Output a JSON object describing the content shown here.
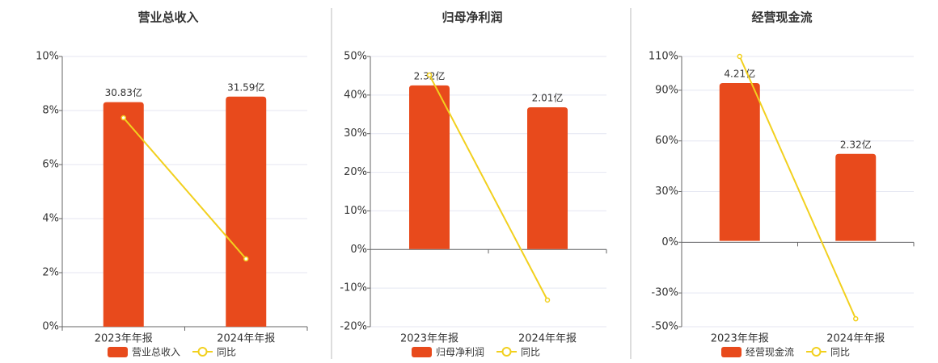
{
  "chart_data": [
    {
      "type": "bar-line",
      "title": "营业总收入",
      "categories": [
        "2023年年报",
        "2024年年报"
      ],
      "series": [
        {
          "name": "营业总收入",
          "type": "bar",
          "color": "#e84a1c",
          "axis": "y2",
          "values": [
            30.83,
            31.59
          ],
          "value_labels": [
            "30.83亿",
            "31.59亿"
          ]
        },
        {
          "name": "同比",
          "type": "line",
          "color": "#f2d01e",
          "values": [
            7.73,
            2.51
          ]
        }
      ],
      "ylim": [
        0,
        10
      ],
      "yticks": [
        {
          "value": 0,
          "label": "0%"
        },
        {
          "value": 2,
          "label": "2%"
        },
        {
          "value": 4,
          "label": "4%"
        },
        {
          "value": 6,
          "label": "6%"
        },
        {
          "value": 8,
          "label": "8%"
        },
        {
          "value": 10,
          "label": "10%"
        }
      ],
      "y2lim": [
        0,
        37.1
      ],
      "grid": true
    },
    {
      "type": "bar-line",
      "title": "归母净利润",
      "categories": [
        "2023年年报",
        "2024年年报"
      ],
      "series": [
        {
          "name": "归母净利润",
          "type": "bar",
          "color": "#e84a1c",
          "axis": "y2",
          "values": [
            2.32,
            2.01
          ],
          "value_labels": [
            "2.32亿",
            "2.01亿"
          ]
        },
        {
          "name": "同比",
          "type": "line",
          "color": "#f2d01e",
          "values": [
            45.2,
            -13.1
          ]
        }
      ],
      "ylim": [
        -20,
        50
      ],
      "yticks": [
        {
          "value": -20,
          "label": "-20%"
        },
        {
          "value": -10,
          "label": "-10%"
        },
        {
          "value": 0,
          "label": "0%"
        },
        {
          "value": 10,
          "label": "10%"
        },
        {
          "value": 20,
          "label": "20%"
        },
        {
          "value": 30,
          "label": "30%"
        },
        {
          "value": 40,
          "label": "40%"
        },
        {
          "value": 50,
          "label": "50%"
        }
      ],
      "y2lim": [
        -1.1,
        2.73
      ],
      "grid": true
    },
    {
      "type": "bar-line",
      "title": "经营现金流",
      "categories": [
        "2023年年报",
        "2024年年报"
      ],
      "series": [
        {
          "name": "经营现金流",
          "type": "bar",
          "color": "#e84a1c",
          "axis": "y2",
          "values": [
            4.21,
            2.32
          ],
          "value_labels": [
            "4.21亿",
            "2.32亿"
          ]
        },
        {
          "name": "同比",
          "type": "line",
          "color": "#f2d01e",
          "values": [
            110,
            -45.3
          ]
        }
      ],
      "ylim": [
        -50,
        110
      ],
      "yticks": [
        {
          "value": -50,
          "label": "-50%"
        },
        {
          "value": -30,
          "label": "-30%"
        },
        {
          "value": 0,
          "label": "0%"
        },
        {
          "value": 30,
          "label": "30%"
        },
        {
          "value": 60,
          "label": "60%"
        },
        {
          "value": 90,
          "label": "90%"
        },
        {
          "value": 110,
          "label": "110%"
        }
      ],
      "y2lim": [
        -2.29,
        4.92
      ],
      "grid": true
    }
  ]
}
